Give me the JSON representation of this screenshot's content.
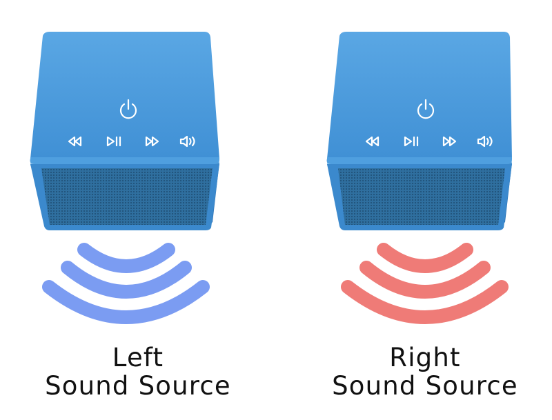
{
  "speakers": [
    {
      "id": "left",
      "caption_line1": "Left",
      "caption_line2": "Sound Source",
      "wave_color": "#7b9cf2",
      "body_color": "#4a9ad8",
      "controls": [
        "power-icon",
        "rewind-icon",
        "play-pause-icon",
        "fast-forward-icon",
        "volume-icon"
      ]
    },
    {
      "id": "right",
      "caption_line1": "Right",
      "caption_line2": "Sound Source",
      "wave_color": "#ef7b77",
      "body_color": "#4a9ad8",
      "controls": [
        "power-icon",
        "rewind-icon",
        "play-pause-icon",
        "fast-forward-icon",
        "volume-icon"
      ]
    }
  ]
}
